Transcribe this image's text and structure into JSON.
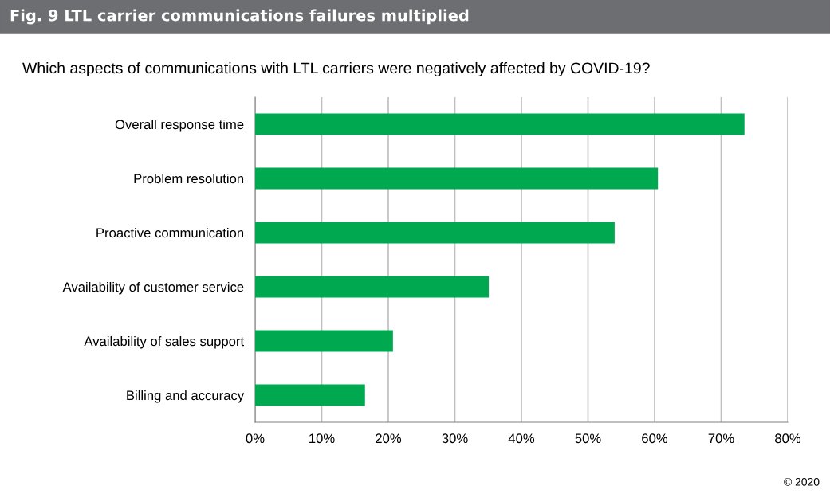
{
  "chart_data": {
    "type": "bar",
    "orientation": "horizontal",
    "title": "Fig. 9 LTL carrier communications failures multiplied",
    "subtitle": "Which aspects of communications with LTL carriers were negatively affected by COVID-19?",
    "categories": [
      "Overall response time",
      "Problem resolution",
      "Proactive communication",
      "Availability of customer service",
      "Availability of sales support",
      "Billing and accuracy"
    ],
    "values": [
      73.5,
      60.5,
      54.0,
      35.1,
      20.7,
      16.5
    ],
    "color": "#00a84f",
    "xlim": [
      0,
      80
    ],
    "xticks": [
      {
        "value": 0,
        "label": "0%"
      },
      {
        "value": 10,
        "label": "10%"
      },
      {
        "value": 20,
        "label": "20%"
      },
      {
        "value": 30,
        "label": "30%"
      },
      {
        "value": 40,
        "label": "40%"
      },
      {
        "value": 50,
        "label": "50%"
      },
      {
        "value": 60,
        "label": "60%"
      },
      {
        "value": 70,
        "label": "70%"
      },
      {
        "value": 80,
        "label": "80%"
      }
    ],
    "grid": "x",
    "legend": false,
    "annotations": [
      "© 2020"
    ]
  }
}
